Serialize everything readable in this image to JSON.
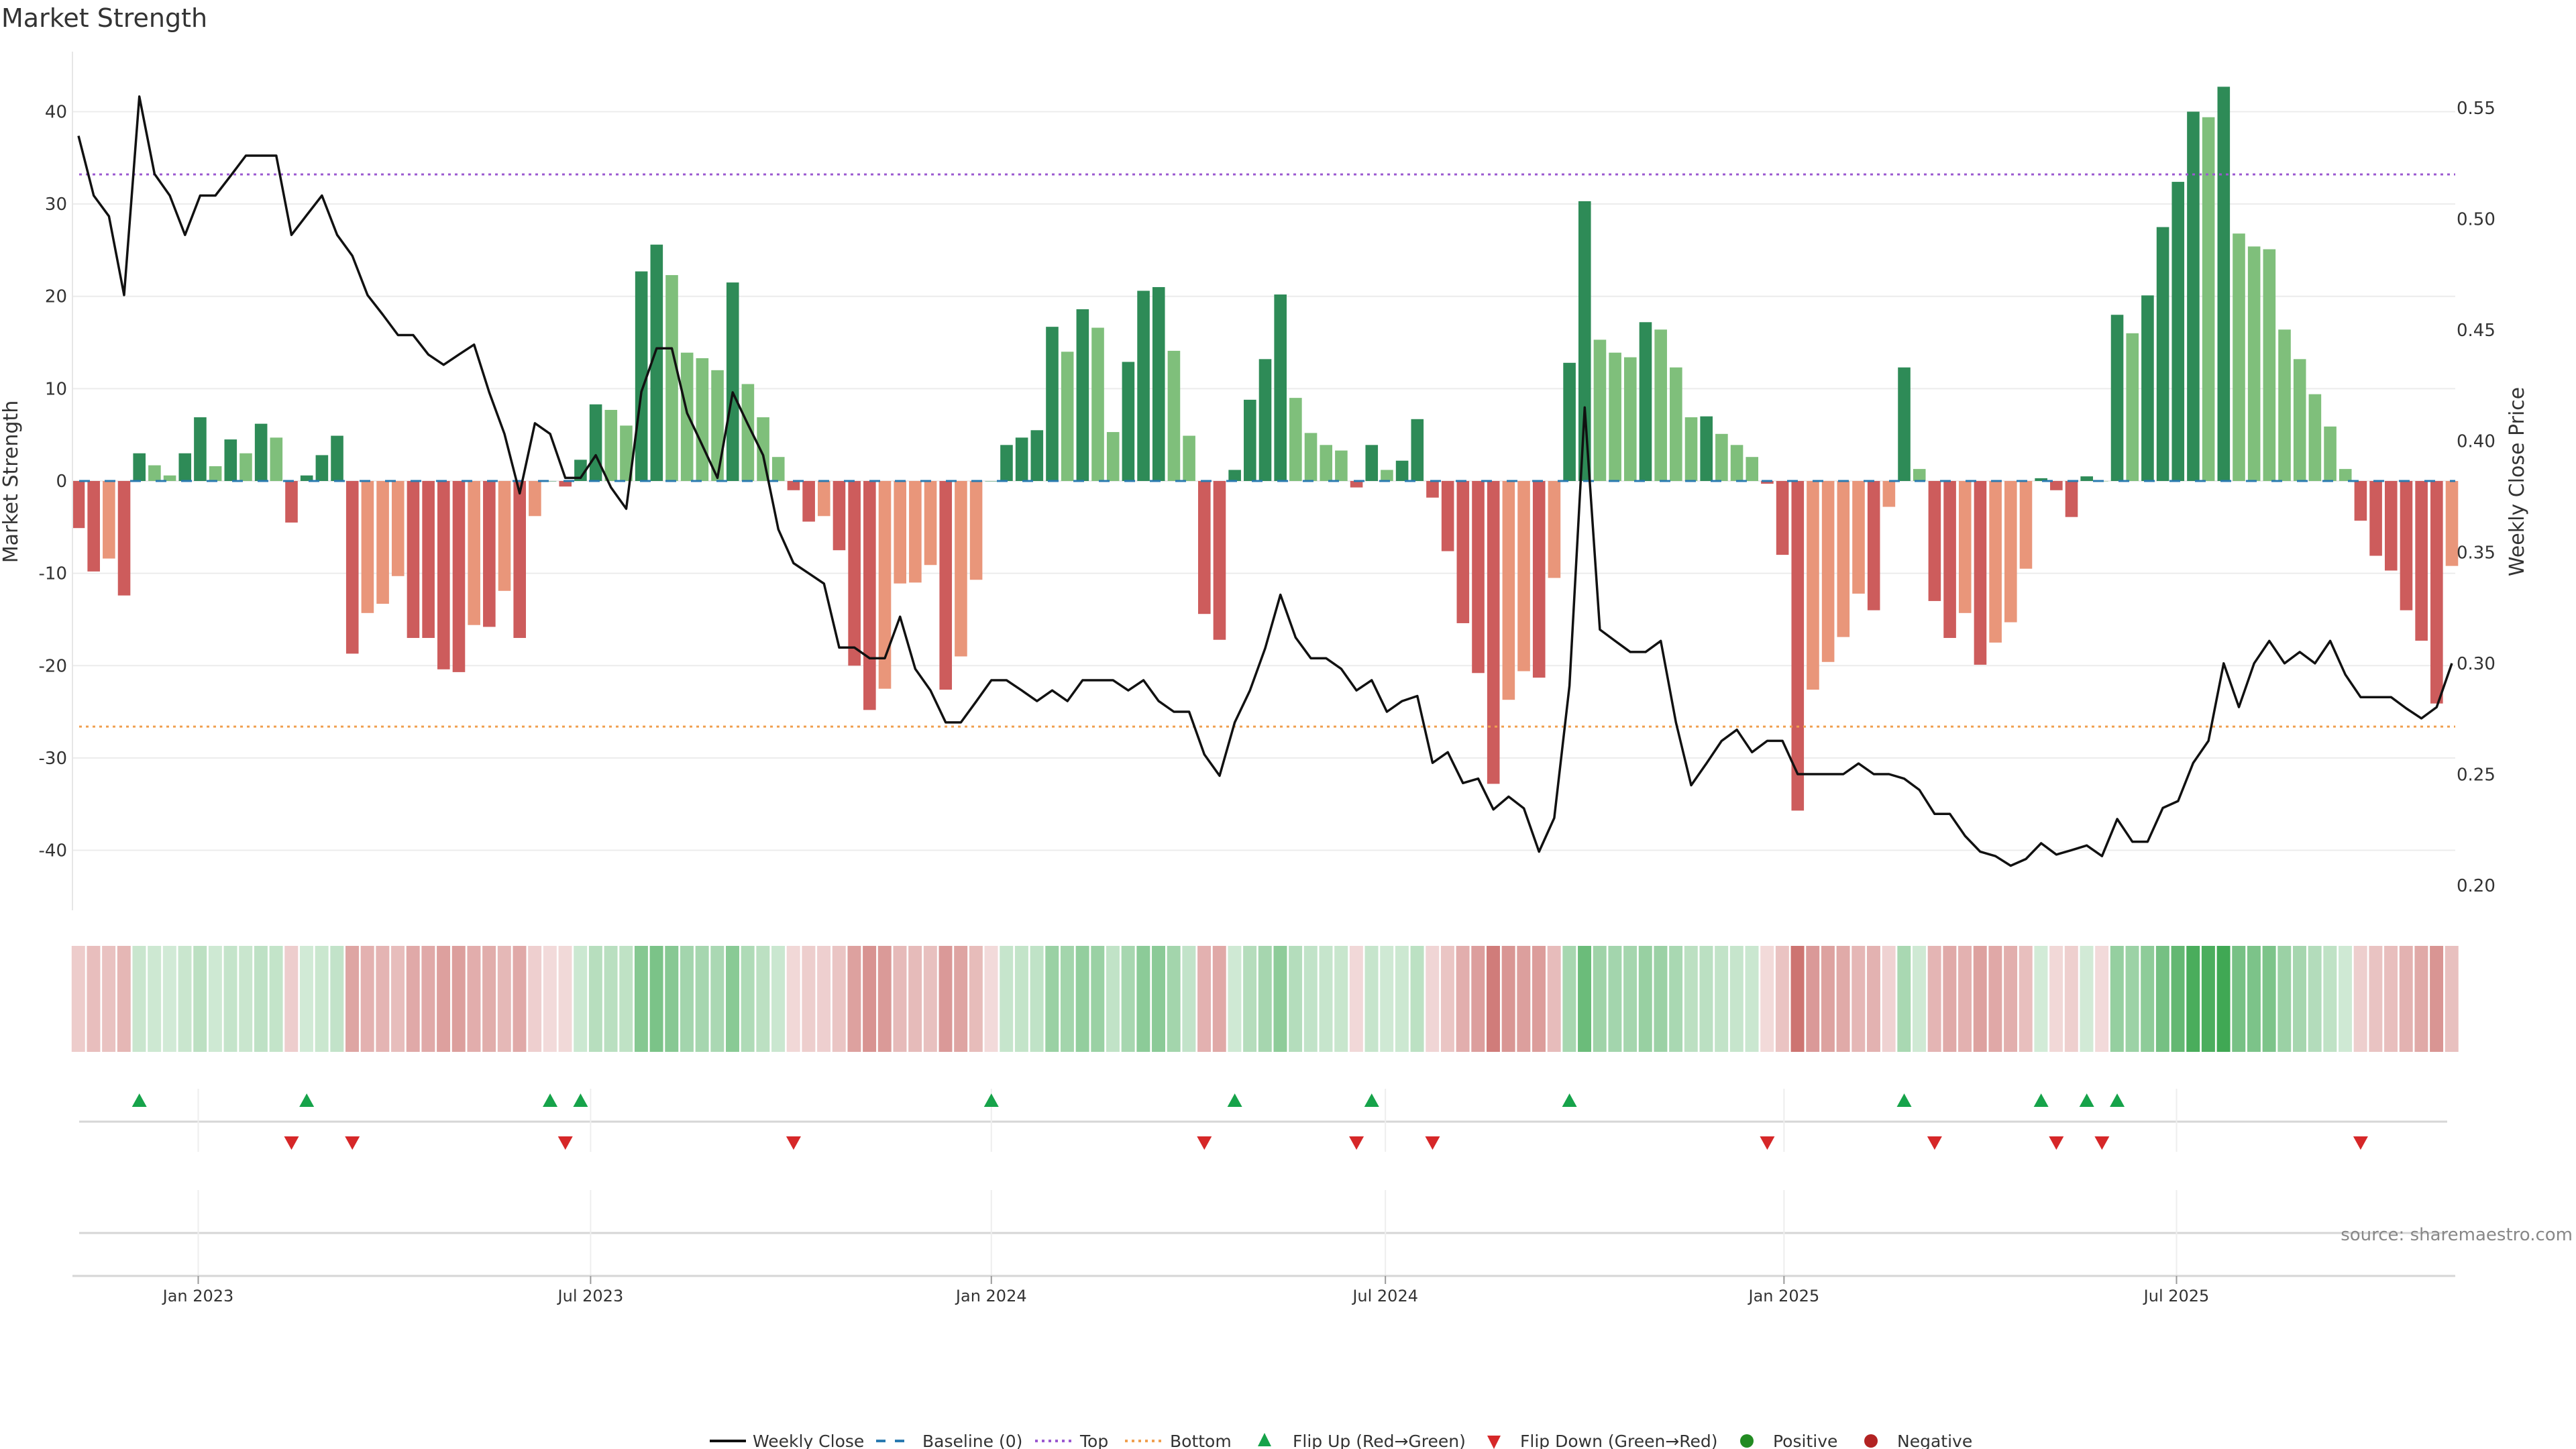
{
  "chart_data": {
    "type": "bar",
    "title": "Market Strength",
    "ylabel": "Market Strength",
    "y2label": "Weekly Close Price",
    "ylim": [
      -46.5,
      46.5
    ],
    "y2lim": [
      0.1888,
      0.5754
    ],
    "yticks": [
      40,
      30,
      20,
      10,
      0,
      -10,
      -20,
      -30,
      -40
    ],
    "y2ticks": [
      "0.55",
      "0.50",
      "0.45",
      "0.40",
      "0.35",
      "0.30",
      "0.25",
      "0.20"
    ],
    "top_level": 33.2,
    "bottom_level": -26.6,
    "baseline": 0,
    "xticks": [
      {
        "label": "Jan 2023",
        "week": 8.87
      },
      {
        "label": "Jul 2023",
        "week": 34.66
      },
      {
        "label": "Jan 2024",
        "week": 61.0
      },
      {
        "label": "Jul 2024",
        "week": 86.9
      },
      {
        "label": "Jan 2025",
        "week": 113.1
      },
      {
        "label": "Jul 2025",
        "week": 138.9
      }
    ],
    "strength": [
      -5.1,
      -9.8,
      -8.4,
      -12.4,
      3.0,
      1.7,
      0.6,
      3.0,
      6.9,
      1.6,
      4.5,
      3.0,
      6.2,
      4.7,
      -4.5,
      0.6,
      2.8,
      4.9,
      -18.7,
      -14.3,
      -13.3,
      -10.3,
      -17.0,
      -17.0,
      -20.4,
      -20.7,
      -15.6,
      -15.8,
      -11.9,
      -17.0,
      -3.8,
      0.0,
      -0.6,
      2.3,
      8.3,
      7.7,
      6.0,
      22.7,
      25.6,
      22.3,
      13.9,
      13.3,
      12.0,
      21.5,
      10.5,
      6.9,
      2.6,
      -1.0,
      -4.4,
      -3.8,
      -7.5,
      -20.0,
      -24.8,
      -22.5,
      -11.1,
      -11.0,
      -9.1,
      -22.6,
      -19.0,
      -10.7,
      0.0,
      3.9,
      4.7,
      5.5,
      16.7,
      14.0,
      18.6,
      16.6,
      5.3,
      12.9,
      20.6,
      21.0,
      14.1,
      4.9,
      -14.4,
      -17.2,
      1.2,
      8.8,
      13.2,
      20.2,
      9.0,
      5.2,
      3.9,
      3.3,
      -0.7,
      3.9,
      1.2,
      2.2,
      6.7,
      -1.8,
      -7.6,
      -15.4,
      -20.8,
      -32.8,
      -23.7,
      -20.6,
      -21.3,
      -10.5,
      12.8,
      30.3,
      15.3,
      13.9,
      13.4,
      17.2,
      16.4,
      12.3,
      6.9,
      7.0,
      5.1,
      3.9,
      2.6,
      -0.3,
      -8.0,
      -35.7,
      -22.6,
      -19.6,
      -16.9,
      -12.2,
      -14.0,
      -2.8,
      12.3,
      1.3,
      -13.0,
      -17.0,
      -14.3,
      -19.9,
      -17.5,
      -15.3,
      -9.5,
      0.3,
      -1.0,
      -3.9,
      0.5,
      0.0,
      18.0,
      16.0,
      20.1,
      27.5,
      32.4,
      40.0,
      39.4,
      42.7,
      26.8,
      25.4,
      25.1,
      16.4,
      13.2,
      9.4,
      5.9,
      1.3,
      -4.3,
      -8.1,
      -9.7,
      -14.0,
      -17.3,
      -24.1,
      -9.2
    ],
    "weekly_close": [
      0.5375,
      0.5106,
      0.5013,
      0.4658,
      0.5552,
      0.5203,
      0.5106,
      0.4929,
      0.5106,
      0.5106,
      0.5195,
      0.5286,
      0.5286,
      0.5286,
      0.4929,
      0.5018,
      0.5106,
      0.4929,
      0.4835,
      0.4658,
      0.457,
      0.4478,
      0.4478,
      0.439,
      0.4344,
      0.439,
      0.4435,
      0.422,
      0.4033,
      0.3765,
      0.4081,
      0.4033,
      0.3835,
      0.3835,
      0.3937,
      0.3792,
      0.3696,
      0.4223,
      0.4418,
      0.4418,
      0.4127,
      0.3982,
      0.3835,
      0.422,
      0.4076,
      0.3937,
      0.3603,
      0.3451,
      0.3405,
      0.3359,
      0.3071,
      0.3071,
      0.3023,
      0.3023,
      0.321,
      0.2975,
      0.2878,
      0.2734,
      0.2734,
      0.2828,
      0.2924,
      0.2924,
      0.2878,
      0.283,
      0.2878,
      0.283,
      0.2924,
      0.2924,
      0.2924,
      0.2878,
      0.2924,
      0.283,
      0.2782,
      0.2782,
      0.259,
      0.2494,
      0.2734,
      0.2878,
      0.3068,
      0.3309,
      0.3116,
      0.3023,
      0.3023,
      0.2975,
      0.2878,
      0.2924,
      0.2782,
      0.283,
      0.2853,
      0.2552,
      0.26,
      0.2461,
      0.2481,
      0.2342,
      0.24,
      0.2347,
      0.2152,
      0.2304,
      0.2899,
      0.4152,
      0.3152,
      0.3101,
      0.3051,
      0.3051,
      0.3101,
      0.2734,
      0.2451,
      0.2549,
      0.2651,
      0.2701,
      0.26,
      0.2651,
      0.2651,
      0.2501,
      0.2501,
      0.2501,
      0.2501,
      0.2549,
      0.2501,
      0.2501,
      0.2481,
      0.243,
      0.2322,
      0.2322,
      0.2223,
      0.2152,
      0.2132,
      0.2089,
      0.2119,
      0.219,
      0.2139,
      0.2159,
      0.218,
      0.2132,
      0.2299,
      0.2197,
      0.2197,
      0.2349,
      0.238,
      0.2552,
      0.2651,
      0.3,
      0.2803,
      0.3,
      0.3101,
      0.3,
      0.3051,
      0.3,
      0.3101,
      0.2949,
      0.2848,
      0.2848,
      0.2848,
      0.2797,
      0.2752,
      0.2803,
      0.3
    ],
    "flip_up_weeks": [
      5,
      16,
      32,
      34,
      61,
      77,
      86,
      99,
      121,
      130,
      133,
      135
    ],
    "flip_down_weeks": [
      15,
      19,
      33,
      48,
      75,
      85,
      90,
      112,
      123,
      131,
      134,
      151
    ],
    "colors": {
      "green_rising": "#2e8b57",
      "green_falling": "#7fbf7b",
      "red_falling": "#cd5c5c",
      "red_rising": "#e9967a",
      "close_line": "#111111",
      "baseline": "#2a7ab0",
      "top": "#9b59d0",
      "bottom": "#f0a050",
      "flip_up": "#16a34a",
      "flip_down": "#d62728",
      "positive": "#228b22",
      "negative": "#b22222",
      "heat_green": "#2ea043",
      "heat_red": "#c0504d"
    },
    "legend": {
      "weekly_close": "Weekly Close",
      "baseline": "Baseline (0)",
      "top": "Top",
      "bottom": "Bottom",
      "flip_up": "Flip Up (Red→Green)",
      "flip_down": "Flip Down (Green→Red)",
      "positive": "Positive",
      "negative": "Negative"
    },
    "source": "source: sharemaestro.com"
  }
}
